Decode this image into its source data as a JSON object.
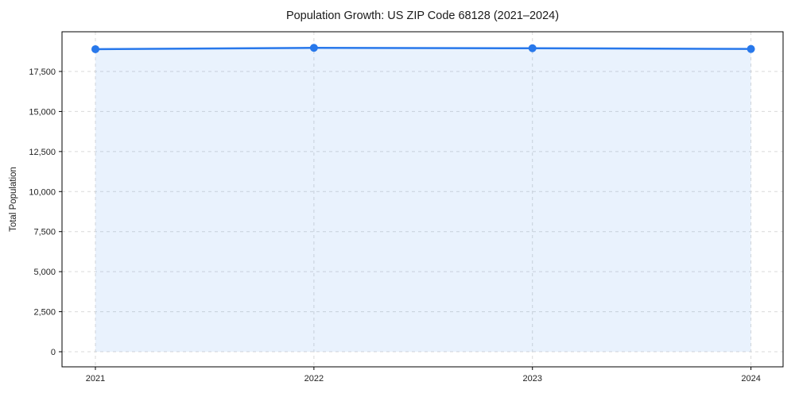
{
  "figure": {
    "background": "#ffffff"
  },
  "chart_data": {
    "type": "line",
    "title": "Population Growth: US ZIP Code 68128 (2021–2024)",
    "categories": [
      "2021",
      "2022",
      "2023",
      "2024"
    ],
    "values": [
      18890,
      18975,
      18950,
      18905
    ],
    "xlabel": "",
    "ylabel": "Total Population",
    "yticks": [
      0,
      2500,
      5000,
      7500,
      10000,
      12500,
      15000,
      17500
    ],
    "ytick_labels": [
      "0",
      "2,500",
      "5,000",
      "7,500",
      "10,000",
      "12,500",
      "15,000",
      "17,500"
    ],
    "ylim": [
      -940,
      19980
    ],
    "grid": {
      "visible": true,
      "style": "dashed",
      "color": "#d9d9d9"
    },
    "legend": "none",
    "line_color": "#2878eb",
    "marker": "circle",
    "marker_color": "#2878eb",
    "area_fill": "rgba(43, 123, 240, 0.10)",
    "spine_color": "#000000",
    "text_color": "#1a1a1a"
  }
}
